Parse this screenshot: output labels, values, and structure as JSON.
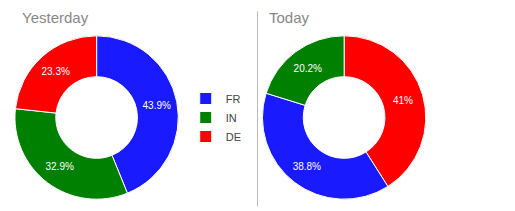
{
  "chart_data": [
    {
      "type": "donut",
      "title": "Yesterday",
      "categories": [
        "FR",
        "IN",
        "DE"
      ],
      "values": [
        43.9,
        32.9,
        23.3
      ],
      "value_labels": [
        "43.9%",
        "32.9%",
        "23.3%"
      ],
      "colors": [
        "#1a1aff",
        "#008000",
        "#ff0000"
      ],
      "data_labels": true,
      "legend": "right"
    },
    {
      "type": "donut",
      "title": "Today",
      "categories": [
        "DE",
        "FR",
        "IN"
      ],
      "values": [
        41.0,
        38.8,
        20.2
      ],
      "value_labels": [
        "41%",
        "38.8%",
        "20.2%"
      ],
      "colors": [
        "#ff0000",
        "#1a1aff",
        "#008000"
      ],
      "data_labels": true,
      "legend": "right"
    }
  ]
}
